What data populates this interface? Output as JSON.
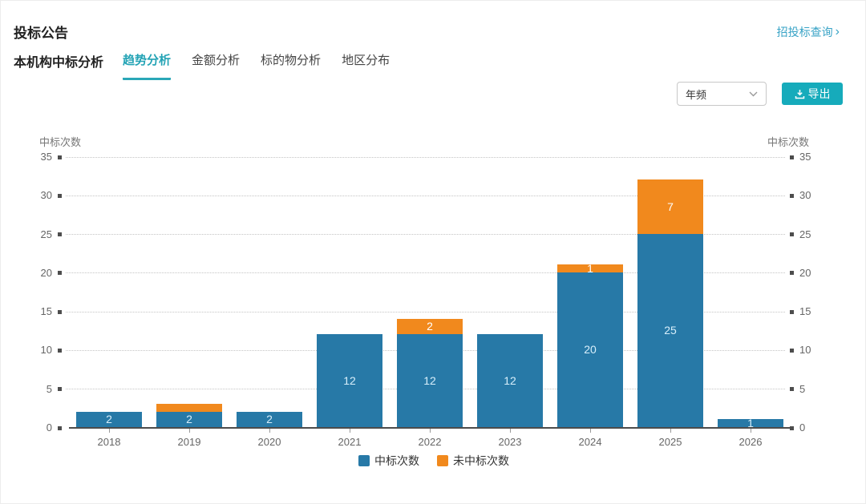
{
  "header": {
    "title": "投标公告",
    "query_link": {
      "label": "招投标查询",
      "arrow": "›"
    }
  },
  "tabs": {
    "section_label": "本机构中标分析",
    "items": [
      {
        "label": "趋势分析",
        "active": true
      },
      {
        "label": "金额分析",
        "active": false
      },
      {
        "label": "标的物分析",
        "active": false
      },
      {
        "label": "地区分布",
        "active": false
      }
    ]
  },
  "controls": {
    "frequency_select": {
      "value": "年频"
    },
    "export_button": {
      "label": "导出",
      "icon": "download-icon"
    }
  },
  "colors": {
    "accent_teal": "#16abbb",
    "link_teal": "#38a3c6",
    "tab_active_teal": "#23a3b5",
    "bar_blue": "#2779a7",
    "bar_orange": "#f1891d"
  },
  "chart_data": {
    "type": "bar",
    "stacked": true,
    "title": "",
    "categories": [
      "2018",
      "2019",
      "2020",
      "2021",
      "2022",
      "2023",
      "2024",
      "2025",
      "2026"
    ],
    "series": [
      {
        "name": "中标次数",
        "color": "#2779a7",
        "label_color": "#d8effb",
        "values": [
          2,
          2,
          2,
          12,
          12,
          12,
          20,
          25,
          1
        ],
        "labels": [
          "2",
          "2",
          "2",
          "12",
          "12",
          "12",
          "20",
          "25",
          "1"
        ]
      },
      {
        "name": "未中标次数",
        "color": "#f1891d",
        "label_color": "#ffffff",
        "values": [
          0,
          1,
          0,
          0,
          2,
          0,
          1,
          7,
          0
        ],
        "labels": [
          "",
          "",
          "",
          "",
          "2",
          "",
          "1",
          "7",
          ""
        ]
      }
    ],
    "totals": [
      2,
      3,
      2,
      12,
      14,
      12,
      21,
      32,
      1
    ],
    "ylim": [
      0,
      35
    ],
    "yticks": [
      0,
      5,
      10,
      15,
      20,
      25,
      30,
      35
    ],
    "y_axis_name_left": "中标次数",
    "y_axis_name_right": "中标次数",
    "xlabel": "",
    "ylabel": "中标次数",
    "grid": "dotted-horizontal",
    "legend_position": "bottom-center",
    "legend": [
      "中标次数",
      "未中标次数"
    ]
  }
}
